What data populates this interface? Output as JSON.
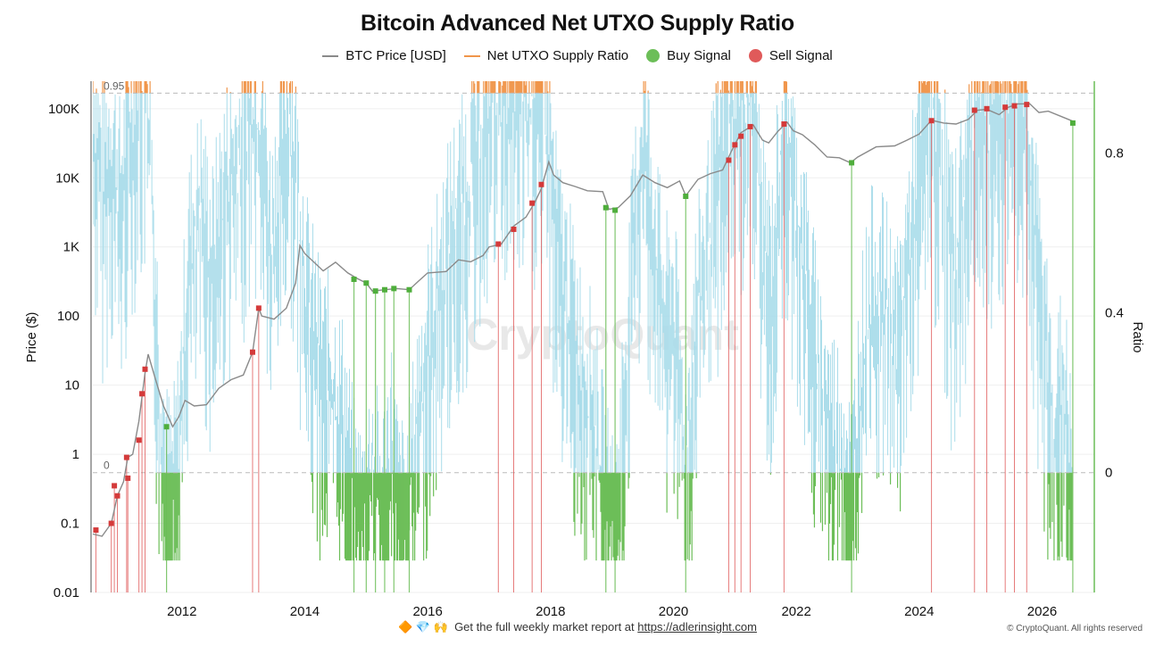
{
  "chart_data": {
    "type": "line",
    "title": "Bitcoin Advanced Net UTXO Supply Ratio",
    "ylabel_left": "Price ($)",
    "ylabel_right": "Ratio",
    "y_left_scale": "log",
    "y_left_range": [
      0.01,
      250000
    ],
    "y_right_range": [
      -0.3,
      0.98
    ],
    "x_range": [
      2010.55,
      2026.85
    ],
    "grid": true,
    "legend_position": "top-center",
    "legend": [
      {
        "label": "BTC Price [USD]",
        "color": "#8a8a8a",
        "kind": "line"
      },
      {
        "label": "Net UTXO Supply Ratio",
        "color": "#f0954a",
        "kind": "line"
      },
      {
        "label": "Buy Signal",
        "color": "#6cbe58",
        "kind": "dot"
      },
      {
        "label": "Sell Signal",
        "color": "#e05a5a",
        "kind": "dot"
      }
    ],
    "x_ticks": [
      "2012",
      "2014",
      "2016",
      "2018",
      "2020",
      "2022",
      "2024",
      "2026"
    ],
    "x_tick_values": [
      2012,
      2014,
      2016,
      2018,
      2020,
      2022,
      2024,
      2026
    ],
    "y_left_ticks": [
      "0.01",
      "0.1",
      "1",
      "10",
      "100",
      "1K",
      "10K",
      "100K"
    ],
    "y_left_tick_values": [
      0.01,
      0.1,
      1,
      10,
      100,
      1000,
      10000,
      100000
    ],
    "y_right_ticks": [
      "0",
      "0.4",
      "0.8"
    ],
    "y_right_tick_values": [
      0,
      0.4,
      0.8
    ],
    "reference_lines": [
      {
        "label": "0.95",
        "value": 0.95
      },
      {
        "label": "0",
        "value": 0
      }
    ],
    "colors": {
      "price": "#8a8a8a",
      "ratio": "#a9dcea",
      "ratio_high": "#f0954a",
      "ratio_low": "#6cbe58",
      "buy": "#6cbe58",
      "sell": "#e05a5a",
      "ref": "#bbbbbb",
      "grid": "#efefef"
    },
    "price_series": [
      [
        2010.55,
        0.07
      ],
      [
        2010.7,
        0.065
      ],
      [
        2010.85,
        0.1
      ],
      [
        2010.95,
        0.25
      ],
      [
        2011.05,
        0.4
      ],
      [
        2011.12,
        0.9
      ],
      [
        2011.2,
        1.0
      ],
      [
        2011.3,
        3
      ],
      [
        2011.4,
        15
      ],
      [
        2011.45,
        28
      ],
      [
        2011.55,
        14
      ],
      [
        2011.7,
        5
      ],
      [
        2011.85,
        2.5
      ],
      [
        2011.95,
        3.5
      ],
      [
        2012.05,
        6
      ],
      [
        2012.2,
        5
      ],
      [
        2012.4,
        5.2
      ],
      [
        2012.6,
        9
      ],
      [
        2012.8,
        12
      ],
      [
        2013.0,
        14
      ],
      [
        2013.15,
        30
      ],
      [
        2013.25,
        130
      ],
      [
        2013.3,
        100
      ],
      [
        2013.5,
        90
      ],
      [
        2013.7,
        130
      ],
      [
        2013.85,
        300
      ],
      [
        2013.92,
        1050
      ],
      [
        2014.0,
        800
      ],
      [
        2014.15,
        600
      ],
      [
        2014.3,
        450
      ],
      [
        2014.5,
        600
      ],
      [
        2014.7,
        420
      ],
      [
        2014.85,
        350
      ],
      [
        2015.0,
        300
      ],
      [
        2015.1,
        230
      ],
      [
        2015.3,
        240
      ],
      [
        2015.5,
        250
      ],
      [
        2015.7,
        240
      ],
      [
        2015.85,
        320
      ],
      [
        2016.0,
        420
      ],
      [
        2016.3,
        440
      ],
      [
        2016.5,
        650
      ],
      [
        2016.7,
        610
      ],
      [
        2016.9,
        750
      ],
      [
        2017.0,
        1000
      ],
      [
        2017.2,
        1100
      ],
      [
        2017.4,
        2000
      ],
      [
        2017.6,
        2700
      ],
      [
        2017.75,
        4500
      ],
      [
        2017.85,
        7000
      ],
      [
        2017.97,
        17000
      ],
      [
        2018.05,
        11000
      ],
      [
        2018.2,
        8500
      ],
      [
        2018.4,
        7500
      ],
      [
        2018.6,
        6500
      ],
      [
        2018.85,
        6300
      ],
      [
        2018.95,
        3500
      ],
      [
        2019.1,
        3700
      ],
      [
        2019.3,
        5500
      ],
      [
        2019.5,
        11000
      ],
      [
        2019.7,
        8500
      ],
      [
        2019.9,
        7200
      ],
      [
        2020.1,
        9000
      ],
      [
        2020.2,
        5500
      ],
      [
        2020.4,
        9500
      ],
      [
        2020.6,
        11500
      ],
      [
        2020.8,
        13000
      ],
      [
        2020.95,
        25000
      ],
      [
        2021.1,
        45000
      ],
      [
        2021.3,
        58000
      ],
      [
        2021.45,
        35000
      ],
      [
        2021.55,
        32000
      ],
      [
        2021.7,
        47000
      ],
      [
        2021.85,
        64000
      ],
      [
        2021.95,
        48000
      ],
      [
        2022.1,
        42000
      ],
      [
        2022.3,
        30000
      ],
      [
        2022.5,
        20000
      ],
      [
        2022.7,
        19500
      ],
      [
        2022.88,
        16500
      ],
      [
        2023.0,
        20000
      ],
      [
        2023.3,
        28000
      ],
      [
        2023.6,
        29000
      ],
      [
        2023.8,
        35000
      ],
      [
        2024.0,
        43000
      ],
      [
        2024.2,
        68000
      ],
      [
        2024.4,
        62000
      ],
      [
        2024.6,
        60000
      ],
      [
        2024.8,
        70000
      ],
      [
        2024.95,
        95000
      ],
      [
        2025.1,
        98000
      ],
      [
        2025.3,
        82000
      ],
      [
        2025.45,
        105000
      ],
      [
        2025.6,
        117000
      ],
      [
        2025.8,
        118000
      ],
      [
        2025.95,
        88000
      ],
      [
        2026.1,
        92000
      ],
      [
        2026.3,
        78000
      ],
      [
        2026.5,
        66000
      ]
    ],
    "sell_signals": [
      [
        2010.6,
        0.08
      ],
      [
        2010.85,
        0.1
      ],
      [
        2010.9,
        0.35
      ],
      [
        2010.95,
        0.25
      ],
      [
        2011.1,
        0.9
      ],
      [
        2011.12,
        0.45
      ],
      [
        2011.3,
        1.6
      ],
      [
        2011.35,
        7.5
      ],
      [
        2011.4,
        17
      ],
      [
        2013.15,
        30
      ],
      [
        2013.25,
        130
      ],
      [
        2017.15,
        1100
      ],
      [
        2017.4,
        1800
      ],
      [
        2017.7,
        4300
      ],
      [
        2017.85,
        8000
      ],
      [
        2020.9,
        18000
      ],
      [
        2021.0,
        30000
      ],
      [
        2021.1,
        40000
      ],
      [
        2021.25,
        55000
      ],
      [
        2021.8,
        60000
      ],
      [
        2024.2,
        67000
      ],
      [
        2024.9,
        95000
      ],
      [
        2025.1,
        100000
      ],
      [
        2025.4,
        105000
      ],
      [
        2025.55,
        110000
      ],
      [
        2025.75,
        115000
      ]
    ],
    "buy_signals": [
      [
        2011.75,
        2.5
      ],
      [
        2014.8,
        340
      ],
      [
        2015.0,
        300
      ],
      [
        2015.15,
        230
      ],
      [
        2015.3,
        240
      ],
      [
        2015.45,
        250
      ],
      [
        2015.7,
        240
      ],
      [
        2018.9,
        3700
      ],
      [
        2019.05,
        3400
      ],
      [
        2020.2,
        5400
      ],
      [
        2022.9,
        16500
      ],
      [
        2026.5,
        62000
      ]
    ],
    "ratio_series": [
      [
        2010.55,
        0.93
      ],
      [
        2010.7,
        0.75
      ],
      [
        2010.85,
        0.85
      ],
      [
        2011.0,
        0.7
      ],
      [
        2011.15,
        0.9
      ],
      [
        2011.3,
        0.98
      ],
      [
        2011.45,
        0.98
      ],
      [
        2011.55,
        0.55
      ],
      [
        2011.65,
        0.2
      ],
      [
        2011.75,
        0.0
      ],
      [
        2011.85,
        -0.04
      ],
      [
        2011.95,
        0.1
      ],
      [
        2012.1,
        0.55
      ],
      [
        2012.3,
        0.7
      ],
      [
        2012.5,
        0.55
      ],
      [
        2012.7,
        0.75
      ],
      [
        2012.9,
        0.8
      ],
      [
        2013.05,
        0.9
      ],
      [
        2013.15,
        0.98
      ],
      [
        2013.3,
        0.9
      ],
      [
        2013.45,
        0.6
      ],
      [
        2013.6,
        0.8
      ],
      [
        2013.75,
        0.95
      ],
      [
        2013.9,
        0.7
      ],
      [
        2014.05,
        0.45
      ],
      [
        2014.25,
        0.3
      ],
      [
        2014.45,
        0.25
      ],
      [
        2014.65,
        0.15
      ],
      [
        2014.8,
        -0.05
      ],
      [
        2014.95,
        -0.1
      ],
      [
        2015.1,
        0.05
      ],
      [
        2015.25,
        -0.08
      ],
      [
        2015.4,
        0.12
      ],
      [
        2015.55,
        -0.1
      ],
      [
        2015.7,
        -0.05
      ],
      [
        2015.85,
        0.2
      ],
      [
        2016.0,
        0.35
      ],
      [
        2016.2,
        0.5
      ],
      [
        2016.4,
        0.65
      ],
      [
        2016.6,
        0.72
      ],
      [
        2016.8,
        0.85
      ],
      [
        2017.0,
        0.97
      ],
      [
        2017.2,
        0.98
      ],
      [
        2017.4,
        0.96
      ],
      [
        2017.6,
        0.98
      ],
      [
        2017.8,
        0.97
      ],
      [
        2017.95,
        0.9
      ],
      [
        2018.1,
        0.6
      ],
      [
        2018.3,
        0.45
      ],
      [
        2018.5,
        0.3
      ],
      [
        2018.7,
        0.2
      ],
      [
        2018.9,
        -0.05
      ],
      [
        2019.05,
        -0.15
      ],
      [
        2019.15,
        0.1
      ],
      [
        2019.35,
        0.6
      ],
      [
        2019.5,
        0.88
      ],
      [
        2019.65,
        0.7
      ],
      [
        2019.85,
        0.4
      ],
      [
        2020.0,
        0.45
      ],
      [
        2020.2,
        0.05
      ],
      [
        2020.35,
        0.4
      ],
      [
        2020.55,
        0.6
      ],
      [
        2020.75,
        0.8
      ],
      [
        2020.9,
        0.97
      ],
      [
        2021.1,
        0.98
      ],
      [
        2021.3,
        0.95
      ],
      [
        2021.45,
        0.6
      ],
      [
        2021.6,
        0.5
      ],
      [
        2021.8,
        0.97
      ],
      [
        2021.95,
        0.75
      ],
      [
        2022.15,
        0.55
      ],
      [
        2022.35,
        0.3
      ],
      [
        2022.55,
        0.15
      ],
      [
        2022.75,
        0.1
      ],
      [
        2022.9,
        -0.04
      ],
      [
        2023.05,
        0.3
      ],
      [
        2023.25,
        0.5
      ],
      [
        2023.45,
        0.45
      ],
      [
        2023.65,
        0.35
      ],
      [
        2023.8,
        0.55
      ],
      [
        2024.0,
        0.8
      ],
      [
        2024.15,
        0.97
      ],
      [
        2024.35,
        0.85
      ],
      [
        2024.55,
        0.55
      ],
      [
        2024.75,
        0.75
      ],
      [
        2024.95,
        0.98
      ],
      [
        2025.15,
        0.9
      ],
      [
        2025.35,
        0.97
      ],
      [
        2025.55,
        0.98
      ],
      [
        2025.75,
        0.97
      ],
      [
        2025.9,
        0.6
      ],
      [
        2026.05,
        0.35
      ],
      [
        2026.2,
        0.15
      ],
      [
        2026.35,
        0.25
      ],
      [
        2026.5,
        -0.05
      ]
    ]
  },
  "watermark": "CryptoQuant",
  "footer": {
    "emoji": "🔶 💎 🙌",
    "text": "Get the full weekly market report at",
    "link": "https://adlerinsight.com",
    "copyright": "© CryptoQuant. All rights reserved"
  }
}
